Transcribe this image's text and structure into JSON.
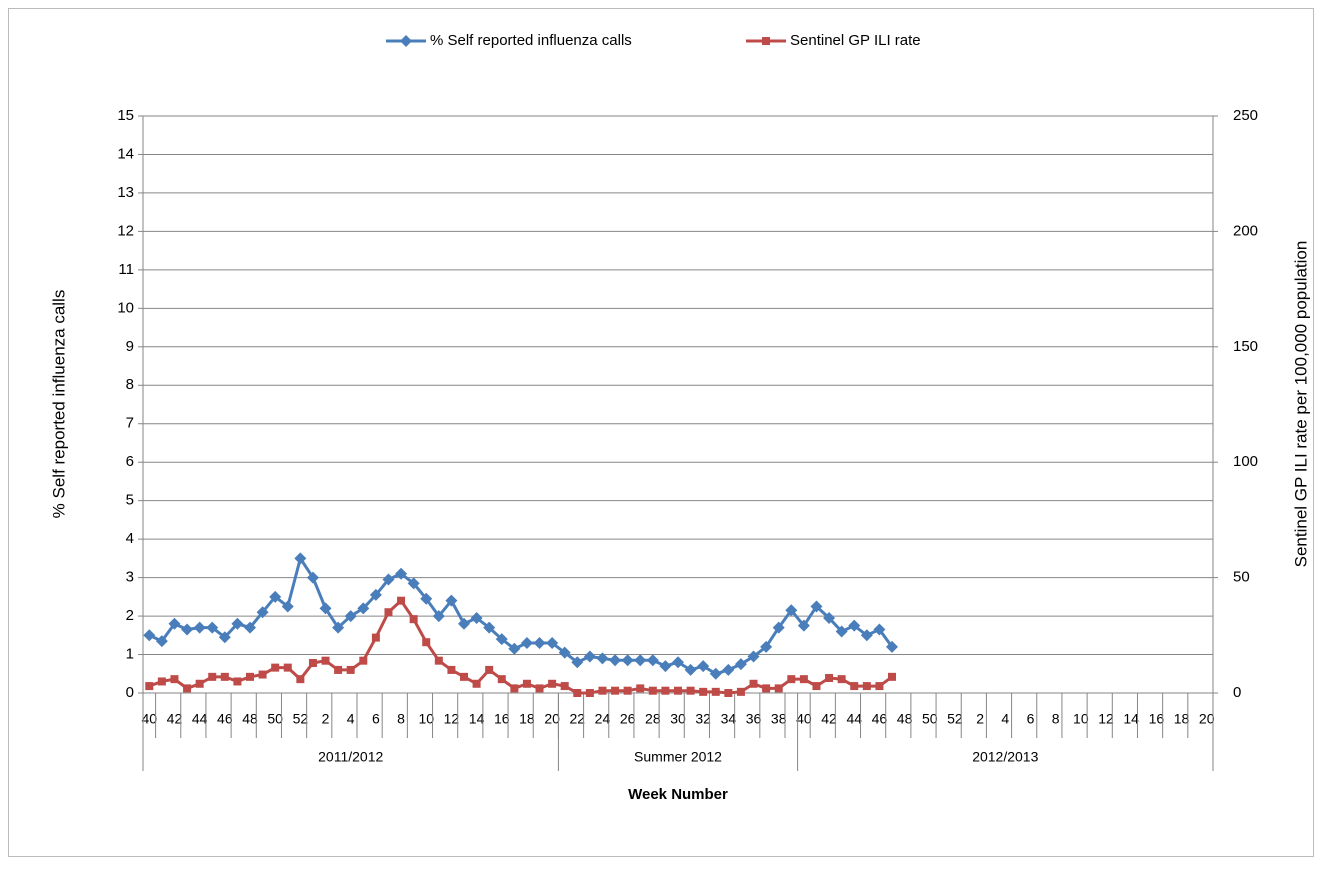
{
  "chart_data": {
    "type": "line",
    "x_label": "Week Number",
    "y_label": "% Self reported influenza calls",
    "y2_label": "Sentinel GP ILI rate per 100,000 population",
    "categories": [
      "40",
      null,
      "42",
      null,
      "44",
      null,
      "46",
      null,
      "48",
      null,
      "50",
      null,
      "52",
      null,
      "2",
      null,
      "4",
      null,
      "6",
      null,
      "8",
      null,
      "10",
      null,
      "12",
      null,
      "14",
      null,
      "16",
      null,
      "18",
      null,
      "20",
      null,
      "22",
      null,
      "24",
      null,
      "26",
      null,
      "28",
      null,
      "30",
      null,
      "32",
      null,
      "34",
      null,
      "36",
      null,
      "38",
      null,
      "40",
      null,
      "42",
      null,
      "44",
      null,
      "46",
      null,
      "48",
      null,
      "50",
      null,
      "52",
      null,
      "2",
      null,
      "4",
      null,
      "6",
      null,
      "8",
      null,
      "10",
      null,
      "12",
      null,
      "14",
      null,
      "16",
      null,
      "18",
      null,
      "20"
    ],
    "groups": [
      {
        "name": "2011/2012",
        "count": 33
      },
      {
        "name": "Summer 2012",
        "count": 19
      },
      {
        "name": "2012/2013",
        "count": 33
      }
    ],
    "series": [
      {
        "name": "% Self reported influenza calls",
        "color": "#4a7ebb",
        "marker": "diamond",
        "values": [
          1.5,
          1.35,
          1.8,
          1.65,
          1.7,
          1.7,
          1.45,
          1.8,
          1.7,
          2.1,
          2.5,
          2.25,
          3.5,
          3.0,
          2.2,
          1.7,
          2.0,
          2.2,
          2.55,
          2.95,
          3.1,
          2.85,
          2.45,
          2.0,
          2.4,
          1.8,
          1.95,
          1.7,
          1.4,
          1.15,
          1.3,
          1.3,
          1.3,
          1.05,
          0.8,
          0.95,
          0.9,
          0.85,
          0.85,
          0.85,
          0.85,
          0.7,
          0.8,
          0.6,
          0.7,
          0.5,
          0.6,
          0.75,
          0.95,
          1.2,
          1.7,
          2.15,
          1.75,
          2.25,
          1.95,
          1.6,
          1.75,
          1.5,
          1.65,
          1.2,
          null,
          null,
          null,
          null,
          null,
          null,
          null,
          null,
          null,
          null,
          null,
          null,
          null,
          null,
          null,
          null,
          null,
          null,
          null,
          null,
          null,
          null,
          null,
          null,
          null
        ]
      },
      {
        "name": "Sentinel GP ILI rate",
        "color": "#be4b48",
        "marker": "square",
        "axis": "y2",
        "values": [
          3,
          5,
          6,
          2,
          4,
          7,
          7,
          5,
          7,
          8,
          11,
          11,
          6,
          13,
          14,
          10,
          10,
          14,
          24,
          35,
          40,
          32,
          22,
          14,
          10,
          7,
          4,
          10,
          6,
          2,
          4,
          2,
          4,
          3,
          0,
          0,
          1,
          1,
          1,
          2,
          1,
          1,
          1,
          1,
          0.5,
          0.5,
          0,
          0.5,
          4,
          2,
          2,
          6,
          6,
          3,
          6.5,
          6,
          3,
          3,
          3,
          7,
          null,
          null,
          null,
          null,
          null,
          null,
          null,
          null,
          null,
          null,
          null,
          null,
          null,
          null,
          null,
          null,
          null,
          null,
          null,
          null,
          null,
          null,
          null,
          null,
          null
        ]
      }
    ],
    "ylim": [
      0,
      15
    ],
    "yticks": [
      0,
      1,
      2,
      3,
      4,
      5,
      6,
      7,
      8,
      9,
      10,
      11,
      12,
      13,
      14,
      15
    ],
    "y2lim": [
      0,
      250
    ],
    "y2ticks": [
      0,
      50,
      100,
      150,
      200,
      250
    ],
    "grid": true,
    "legend": "top"
  }
}
